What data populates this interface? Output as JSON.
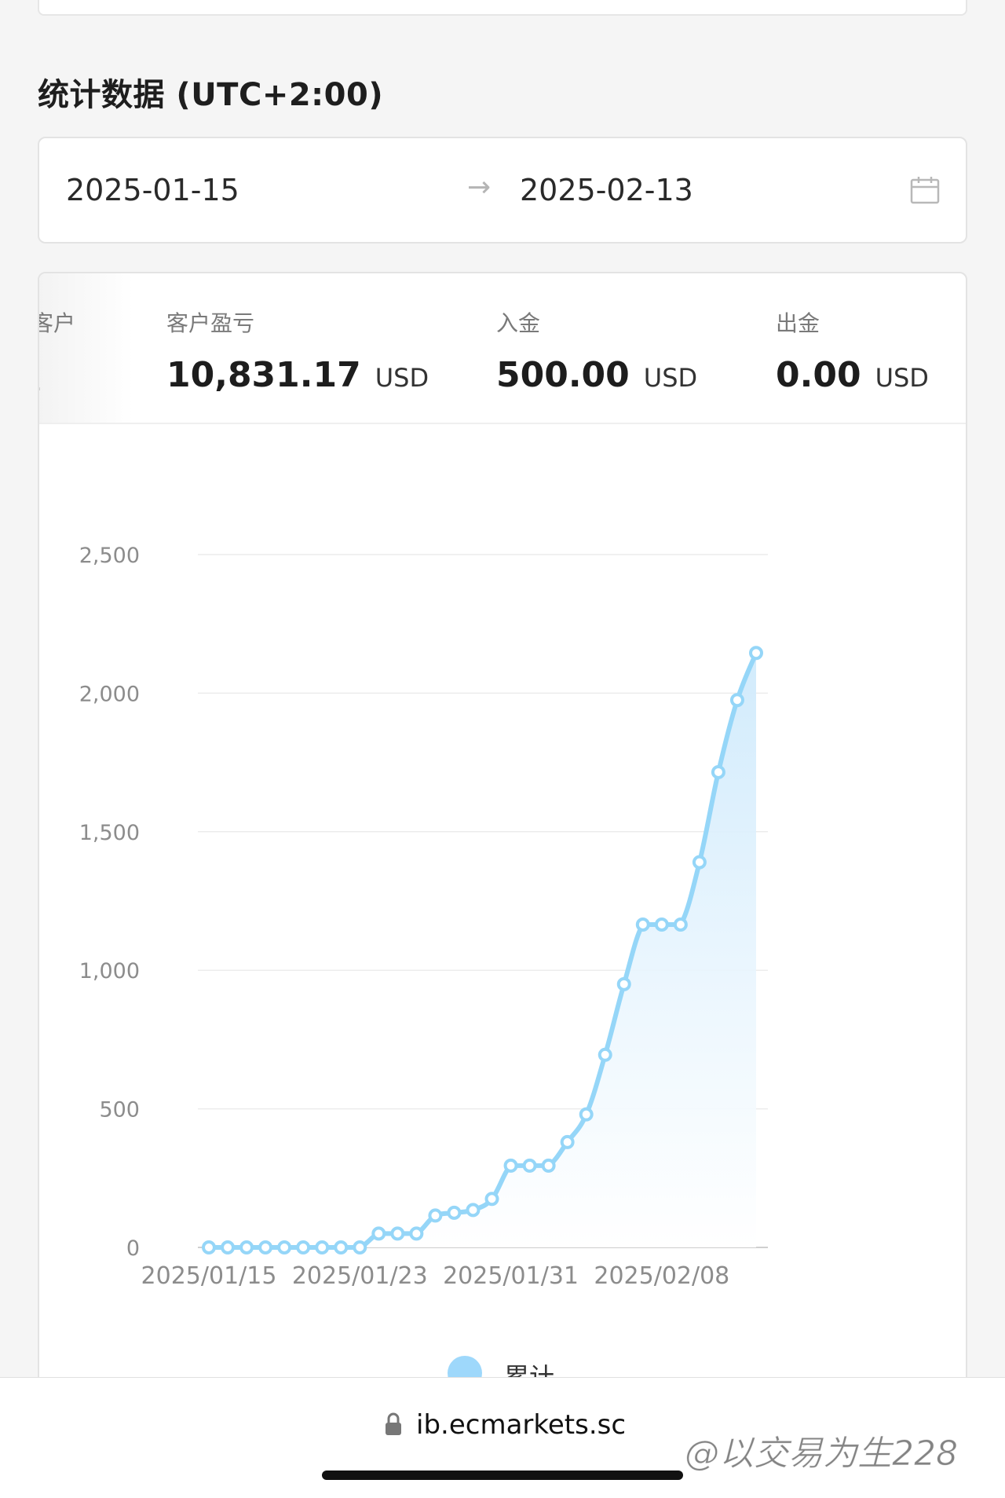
{
  "section": {
    "title": "统计数据 (UTC+2:00)"
  },
  "date_range": {
    "start": "2025-01-15",
    "arrow": "→",
    "end": "2025-02-13"
  },
  "stats": {
    "partial_label": "客户",
    "partial_value": ".",
    "items": [
      {
        "label": "客户盈亏",
        "value": "10,831.17",
        "unit": "USD"
      },
      {
        "label": "入金",
        "value": "500.00",
        "unit": "USD"
      },
      {
        "label": "出金",
        "value": "0.00",
        "unit": "USD"
      }
    ]
  },
  "chart_data": {
    "type": "area",
    "x": [
      "2025/01/15",
      "2025/01/16",
      "2025/01/17",
      "2025/01/18",
      "2025/01/19",
      "2025/01/20",
      "2025/01/21",
      "2025/01/22",
      "2025/01/23",
      "2025/01/24",
      "2025/01/25",
      "2025/01/26",
      "2025/01/27",
      "2025/01/28",
      "2025/01/29",
      "2025/01/30",
      "2025/01/31",
      "2025/02/01",
      "2025/02/02",
      "2025/02/03",
      "2025/02/04",
      "2025/02/05",
      "2025/02/06",
      "2025/02/07",
      "2025/02/08",
      "2025/02/09",
      "2025/02/10",
      "2025/02/11",
      "2025/02/12",
      "2025/02/13"
    ],
    "series": [
      {
        "name": "累计",
        "values": [
          0,
          0,
          0,
          0,
          0,
          0,
          0,
          0,
          0,
          50,
          50,
          50,
          115,
          125,
          135,
          175,
          295,
          295,
          295,
          380,
          480,
          695,
          950,
          1165,
          1165,
          1165,
          1390,
          1715,
          1975,
          2145
        ]
      }
    ],
    "x_tick_labels": [
      "2025/01/15",
      "2025/01/23",
      "2025/01/31",
      "2025/02/08"
    ],
    "y_ticks": [
      0,
      500,
      1000,
      1500,
      2000,
      2500
    ],
    "y_tick_labels": [
      "0",
      "500",
      "1,000",
      "1,500",
      "2,000",
      "2,500"
    ],
    "ylim": [
      0,
      2500
    ],
    "grid": true,
    "legend": "bottom",
    "color": "#95d6f8"
  },
  "legend": {
    "label": "累计"
  },
  "browser": {
    "url": "ib.ecmarkets.sc"
  },
  "watermark": "@以交易为生228",
  "colors": {
    "line": "#95d6f8",
    "fill": "#dff2fd",
    "grid": "#ececec"
  }
}
